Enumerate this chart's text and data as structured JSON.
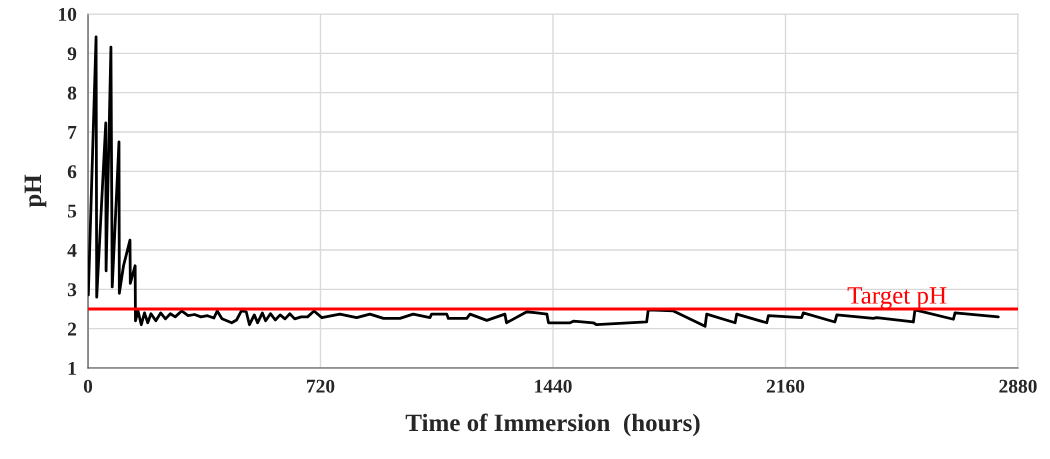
{
  "chart_data": {
    "type": "line",
    "xlabel": "Time of Immersion  (hours)",
    "ylabel": "pH",
    "xlim": [
      0,
      2880
    ],
    "xticks": [
      0,
      720,
      1440,
      2160,
      2880
    ],
    "ylim": [
      1,
      10
    ],
    "yticks": [
      1,
      2,
      3,
      4,
      5,
      6,
      7,
      8,
      9,
      10
    ],
    "grid": true,
    "marker": "none",
    "line_style": "solid",
    "ref_lines": [
      {
        "axis": "y",
        "value": 2.5,
        "label": "Target pH",
        "color": "#ff0000",
        "line_style": "solid"
      }
    ],
    "series": [
      {
        "color": "#000000",
        "x": [
          1,
          25,
          27,
          55,
          56,
          71,
          75,
          96,
          97,
          110,
          130,
          131,
          146,
          147,
          155,
          165,
          175,
          185,
          195,
          210,
          225,
          240,
          255,
          270,
          290,
          310,
          330,
          350,
          370,
          390,
          400,
          415,
          430,
          445,
          460,
          475,
          490,
          500,
          515,
          525,
          540,
          550,
          565,
          580,
          595,
          610,
          625,
          640,
          660,
          680,
          700,
          724,
          780,
          832,
          873,
          915,
          966,
          1007,
          1059,
          1064,
          1111,
          1116,
          1173,
          1183,
          1235,
          1291,
          1296,
          1359,
          1390,
          1421,
          1426,
          1493,
          1503,
          1565,
          1575,
          1730,
          1735,
          1813,
          1911,
          1916,
          2004,
          2009,
          2102,
          2107,
          2210,
          2215,
          2313,
          2319,
          2432,
          2442,
          2556,
          2561,
          2680,
          2685,
          2819
        ],
        "values": [
          2.86,
          9.42,
          2.8,
          7.23,
          3.47,
          9.16,
          3.06,
          6.75,
          2.9,
          3.6,
          4.25,
          3.15,
          3.6,
          2.2,
          2.45,
          2.1,
          2.4,
          2.15,
          2.38,
          2.2,
          2.4,
          2.25,
          2.38,
          2.3,
          2.45,
          2.33,
          2.36,
          2.3,
          2.33,
          2.27,
          2.45,
          2.25,
          2.2,
          2.15,
          2.22,
          2.45,
          2.43,
          2.1,
          2.35,
          2.15,
          2.4,
          2.2,
          2.38,
          2.22,
          2.35,
          2.25,
          2.38,
          2.25,
          2.3,
          2.3,
          2.45,
          2.28,
          2.37,
          2.28,
          2.37,
          2.26,
          2.26,
          2.37,
          2.28,
          2.37,
          2.37,
          2.26,
          2.26,
          2.37,
          2.21,
          2.37,
          2.15,
          2.43,
          2.4,
          2.37,
          2.15,
          2.15,
          2.19,
          2.15,
          2.1,
          2.17,
          2.48,
          2.45,
          2.06,
          2.37,
          2.15,
          2.37,
          2.15,
          2.33,
          2.28,
          2.4,
          2.17,
          2.35,
          2.26,
          2.28,
          2.17,
          2.48,
          2.24,
          2.4,
          2.3
        ]
      }
    ]
  }
}
